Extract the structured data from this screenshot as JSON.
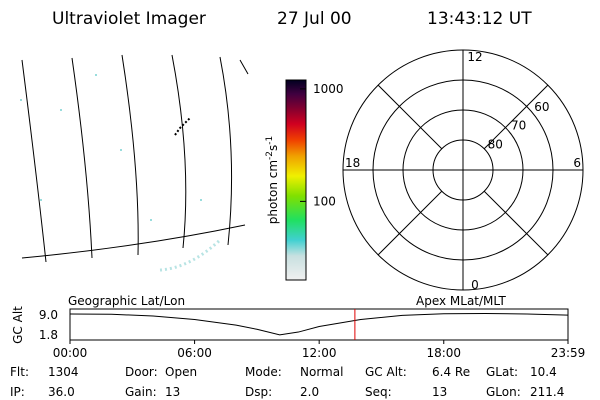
{
  "header": {
    "instrument": "Ultraviolet Imager",
    "date": "27 Jul 00",
    "time": "13:43:12 UT"
  },
  "colorbar": {
    "label": "photon cm",
    "exp1": "-2",
    "unit2": "s",
    "exp2": "-1",
    "log": true,
    "range": [
      20,
      1200
    ],
    "ticks": [
      1000,
      100
    ]
  },
  "polar_plot": {
    "lat_range": [
      90,
      50
    ],
    "lat_ticks": [
      80,
      70,
      60
    ],
    "mlt_ticks": [
      12,
      18,
      6,
      0
    ]
  },
  "timeline": {
    "left_label": "Geographic Lat/Lon",
    "right_label": "Apex MLat/MLT",
    "ylabel": "GC Alt",
    "ylim": [
      1.8,
      9.0
    ],
    "yticks": [
      {
        "value": 9.0,
        "label": "9.0"
      },
      {
        "value": 1.8,
        "label": "1.8"
      }
    ],
    "xlim": [
      0,
      23.9833
    ],
    "xticks": [
      {
        "value": 0,
        "label": "00:00"
      },
      {
        "value": 6,
        "label": "06:00"
      },
      {
        "value": 12,
        "label": "12:00"
      },
      {
        "value": 18,
        "label": "18:00"
      },
      {
        "value": 23.9833,
        "label": "23:59"
      }
    ],
    "x": [
      0,
      2,
      4,
      6,
      8,
      9,
      10.1,
      11,
      12,
      14,
      16,
      18,
      20,
      22,
      23.98
    ],
    "values": [
      9.0,
      8.9,
      8.3,
      7.0,
      5.0,
      3.5,
      1.5,
      2.5,
      4.5,
      7.0,
      8.5,
      9.1,
      9.2,
      9.0,
      8.6
    ],
    "current_time": 13.72,
    "marker_color": "#e00000"
  },
  "footer": [
    [
      [
        "Flt:",
        "1304"
      ],
      [
        "Door:",
        "Open"
      ],
      [
        "Mode:",
        "Normal"
      ],
      [
        "GC Alt:",
        "6.4 Re"
      ],
      [
        "GLat:",
        "10.4"
      ]
    ],
    [
      [
        "IP:",
        "36.0"
      ],
      [
        "Gain:",
        "13"
      ],
      [
        "Dsp:",
        "2.0"
      ],
      [
        "Seq:",
        "13"
      ],
      [
        "GLon:",
        "211.4"
      ]
    ]
  ]
}
